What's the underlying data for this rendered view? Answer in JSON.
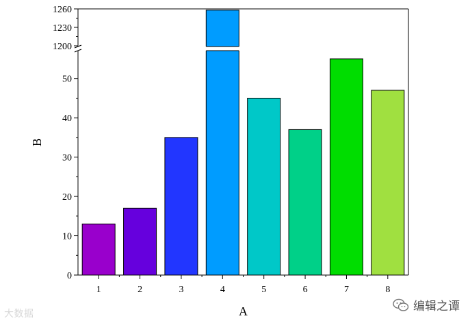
{
  "chart_data": {
    "type": "bar",
    "xlabel": "A",
    "ylabel": "B",
    "categories": [
      "1",
      "2",
      "3",
      "4",
      "5",
      "6",
      "7",
      "8"
    ],
    "values": [
      13,
      17,
      35,
      1258,
      45,
      37,
      55,
      47
    ],
    "colors": [
      "#9900cc",
      "#6600dd",
      "#2236ff",
      "#009cff",
      "#00c8c8",
      "#00d088",
      "#00dd00",
      "#a0e040"
    ],
    "y_axis_break": {
      "lower_segment": [
        0,
        55
      ],
      "upper_segment": [
        1200,
        1260
      ]
    },
    "yticks_lower": [
      "0",
      "10",
      "20",
      "30",
      "40",
      "50"
    ],
    "yticks_upper": [
      "1200",
      "1230",
      "1260"
    ],
    "grid": false,
    "legend": false
  },
  "watermarks": {
    "left": "大数据",
    "right": "编辑之谭"
  }
}
